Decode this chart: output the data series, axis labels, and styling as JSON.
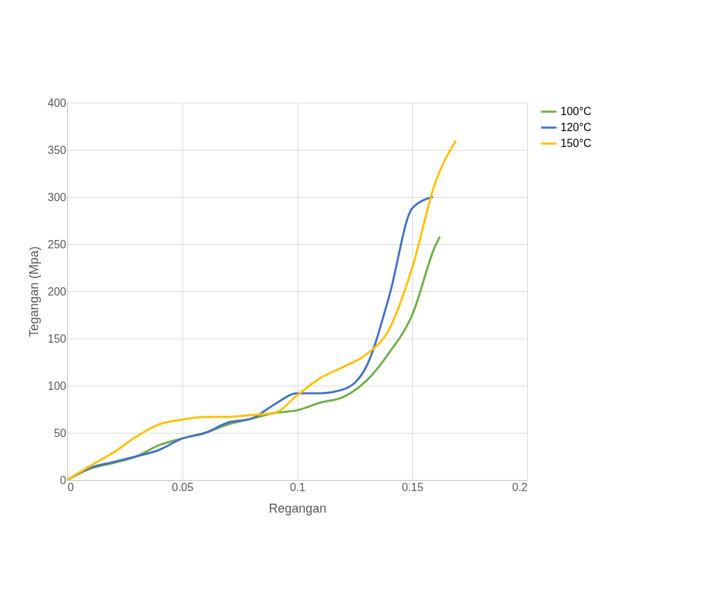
{
  "chart_data": {
    "type": "line",
    "xlabel": "Regangan",
    "ylabel": "Tegangan (Mpa)",
    "xlim": [
      0,
      0.2
    ],
    "xticks": [
      0,
      0.05,
      0.1,
      0.15,
      0.2
    ],
    "ylim": [
      0,
      400
    ],
    "yticks": [
      0,
      50,
      100,
      150,
      200,
      250,
      300,
      350,
      400
    ],
    "grid": true,
    "legend": "right",
    "marker": "none",
    "line_style": "solid",
    "series": [
      {
        "name": "100°C",
        "color": "#70ad47",
        "x": [
          0,
          0.01,
          0.02,
          0.03,
          0.04,
          0.05,
          0.06,
          0.07,
          0.08,
          0.09,
          0.1,
          0.11,
          0.12,
          0.13,
          0.14,
          0.15,
          0.16,
          0.162
        ],
        "values": [
          0,
          12,
          18,
          25,
          37,
          44,
          50,
          59,
          65,
          71,
          74,
          82,
          88,
          105,
          135,
          175,
          248,
          258
        ]
      },
      {
        "name": "120°C",
        "color": "#4472c4",
        "x": [
          0,
          0.01,
          0.02,
          0.03,
          0.04,
          0.05,
          0.06,
          0.07,
          0.08,
          0.09,
          0.1,
          0.11,
          0.12,
          0.13,
          0.14,
          0.15,
          0.159
        ],
        "values": [
          0,
          13,
          19,
          25,
          32,
          44,
          50,
          61,
          65,
          80,
          92,
          92,
          96,
          120,
          195,
          288,
          300
        ]
      },
      {
        "name": "150°C",
        "color": "#ffc000",
        "x": [
          0,
          0.01,
          0.02,
          0.03,
          0.04,
          0.05,
          0.06,
          0.07,
          0.08,
          0.09,
          0.1,
          0.11,
          0.12,
          0.13,
          0.14,
          0.15,
          0.16,
          0.169
        ],
        "values": [
          0,
          15,
          29,
          46,
          59,
          64,
          67,
          67,
          69,
          71,
          90,
          108,
          120,
          133,
          160,
          225,
          315,
          360
        ]
      }
    ]
  }
}
